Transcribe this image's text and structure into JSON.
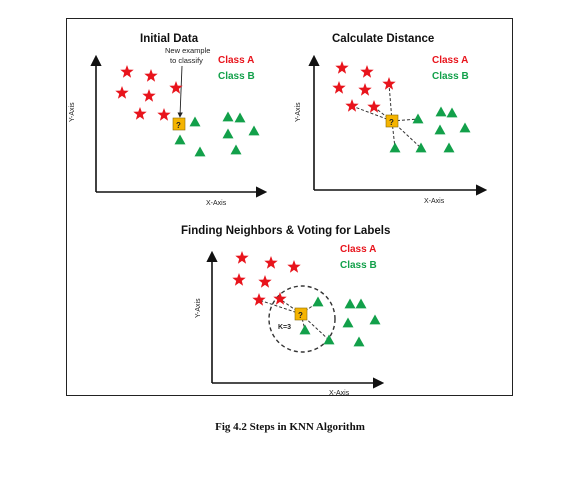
{
  "colors": {
    "class_a": "#e8141c",
    "class_b": "#12a04a",
    "unknown": "#f5b400",
    "axis": "#111111"
  },
  "panels": [
    {
      "title": "Initial Data",
      "x_axis": "X-Axis",
      "y_axis": "Y-Axis",
      "legend": {
        "a": "Class A",
        "b": "Class B"
      },
      "note_line1": "New example",
      "note_line2": "to classify",
      "unknown_label": "?"
    },
    {
      "title": "Calculate Distance",
      "x_axis": "X-Axis",
      "y_axis": "Y-Axis",
      "legend": {
        "a": "Class A",
        "b": "Class B"
      },
      "unknown_label": "?"
    },
    {
      "title": "Finding Neighbors & Voting for Labels",
      "x_axis": "X-Axis",
      "y_axis": "Y-Axis",
      "legend": {
        "a": "Class A",
        "b": "Class B"
      },
      "unknown_label": "?",
      "k_label": "K=3"
    }
  ],
  "caption": "Fig 4.2 Steps in KNN Algorithm"
}
